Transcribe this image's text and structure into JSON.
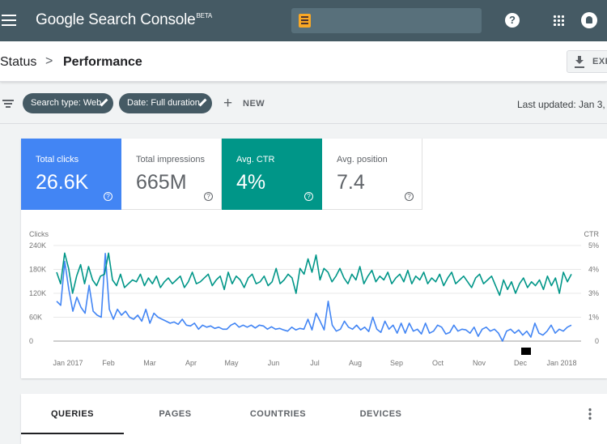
{
  "app": {
    "title_main": "Google Search Console",
    "title_badge": "BETA"
  },
  "breadcrumb": {
    "parent": "Status",
    "separator": ">",
    "current": "Performance"
  },
  "toolbar": {
    "export_label": "EXP"
  },
  "filters": {
    "chips": [
      {
        "label": "Search type: Web"
      },
      {
        "label": "Date: Full duration"
      }
    ],
    "new_label": "NEW",
    "last_updated": "Last updated: Jan 3,"
  },
  "metrics": [
    {
      "label": "Total clicks",
      "value": "26.6K",
      "selected": true,
      "color": "#4285f4"
    },
    {
      "label": "Total impressions",
      "value": "665M",
      "selected": false,
      "color": "#ffffff"
    },
    {
      "label": "Avg. CTR",
      "value": "4%",
      "selected": true,
      "color": "#009688"
    },
    {
      "label": "Avg. position",
      "value": "7.4",
      "selected": false,
      "color": "#ffffff"
    }
  ],
  "chart_data": {
    "type": "line",
    "ylabel": "Clicks",
    "y2label": "CTR",
    "yticks": [
      "240K",
      "180K",
      "120K",
      "60K",
      "0"
    ],
    "y2ticks": [
      "5%",
      "4%",
      "3%",
      "1%",
      "0"
    ],
    "ylim": [
      0,
      240000
    ],
    "y2lim": [
      0,
      5
    ],
    "xticks": [
      "Jan 2017",
      "Feb",
      "Mar",
      "Apr",
      "May",
      "Jun",
      "Jul",
      "Aug",
      "Sep",
      "Oct",
      "Nov",
      "Dec",
      "Jan 2018"
    ],
    "colors": {
      "clicks": "#4285f4",
      "ctr": "#009688"
    },
    "series": [
      {
        "key": "clicks",
        "values": [
          100000,
          90000,
          200000,
          130000,
          75000,
          110000,
          85000,
          70000,
          140000,
          75000,
          65000,
          60000,
          220000,
          80000,
          55000,
          80000,
          65000,
          75000,
          60000,
          55000,
          65000,
          50000,
          80000,
          45000,
          70000,
          60000,
          55000,
          50000,
          45000,
          48000,
          42000,
          55000,
          40000,
          38000,
          45000,
          30000,
          40000,
          35000,
          38000,
          32000,
          35000,
          30000,
          30000,
          40000,
          45000,
          35000,
          40000,
          35000,
          40000,
          33000,
          40000,
          38000,
          30000,
          36000,
          30000,
          32000,
          28000,
          25000,
          35000,
          28000,
          32000,
          30000,
          55000,
          28000,
          70000,
          50000,
          28000,
          100000,
          40000,
          25000,
          30000,
          50000,
          35000,
          30000,
          40000,
          28000,
          35000,
          24000,
          60000,
          30000,
          22000,
          50000,
          30000,
          40000,
          20000,
          45000,
          20000,
          45000,
          25000,
          30000,
          18000,
          45000,
          20000,
          25000,
          40000,
          35000,
          18000,
          22000,
          40000,
          25000,
          30000,
          28000,
          20000,
          35000,
          12000,
          30000,
          35000,
          25000,
          30000,
          20000,
          0,
          25000,
          30000,
          20000,
          28000,
          15000,
          25000,
          10000,
          45000,
          20000,
          15000,
          25000,
          40000,
          20000,
          30000,
          25000,
          35000,
          40000
        ]
      },
      {
        "key": "ctr",
        "values": [
          3.6,
          3.0,
          4.6,
          3.8,
          2.5,
          3.4,
          4.0,
          3.0,
          3.9,
          3.2,
          2.9,
          3.4,
          3.5,
          4.6,
          3.2,
          2.9,
          3.5,
          2.8,
          3.0,
          3.2,
          3.1,
          3.5,
          2.9,
          3.3,
          3.0,
          3.4,
          2.8,
          3.1,
          3.3,
          3.0,
          3.2,
          3.4,
          2.8,
          3.1,
          3.6,
          3.0,
          3.1,
          3.3,
          3.5,
          2.9,
          3.2,
          3.4,
          2.7,
          3.6,
          3.0,
          3.4,
          3.2,
          2.8,
          3.3,
          3.5,
          3.0,
          3.1,
          3.4,
          2.9,
          3.1,
          3.8,
          3.0,
          3.2,
          3.5,
          3.3,
          2.5,
          3.8,
          3.5,
          4.3,
          3.6,
          4.5,
          3.2,
          3.8,
          3.6,
          3.1,
          3.4,
          3.8,
          3.3,
          3.0,
          3.5,
          3.2,
          3.9,
          3.0,
          3.4,
          3.7,
          3.1,
          3.4,
          3.2,
          3.6,
          3.0,
          3.3,
          3.5,
          3.1,
          3.7,
          3.0,
          3.4,
          3.2,
          3.6,
          3.0,
          3.3,
          3.1,
          3.5,
          2.9,
          3.3,
          3.6,
          3.0,
          3.2,
          3.4,
          3.1,
          2.8,
          3.3,
          3.5,
          3.0,
          3.2,
          3.4,
          2.9,
          2.4,
          3.2,
          2.7,
          3.1,
          2.5,
          3.0,
          3.3,
          2.8,
          3.1,
          2.9,
          3.2,
          2.7,
          3.4,
          2.9,
          3.3,
          2.5,
          3.6,
          3.1,
          3.5
        ]
      }
    ]
  },
  "tabs": [
    {
      "label": "QUERIES",
      "active": true
    },
    {
      "label": "PAGES",
      "active": false
    },
    {
      "label": "COUNTRIES",
      "active": false
    },
    {
      "label": "DEVICES",
      "active": false
    }
  ]
}
